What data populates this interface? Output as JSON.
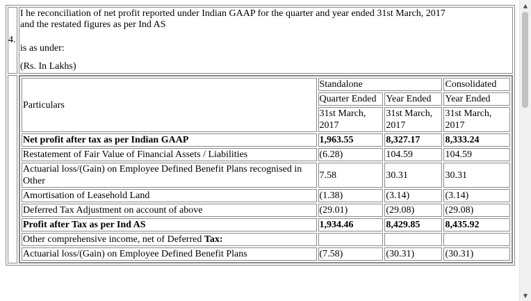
{
  "section": {
    "number": "4.",
    "intro_line1": "I he reconciliation of net profit reported under Indian GAAP for the quarter and year ended 31st March, 2017",
    "intro_line2": "and the restated figures as per Ind AS",
    "intro_line3": "is as under:",
    "unit_note": "(Rs. In Lakhs)"
  },
  "table": {
    "particulars_header": "Particulars",
    "standalone_header": "Standalone",
    "consolidated_header": "Consolidated",
    "quarter_ended": "Quarter Ended",
    "year_ended_1": "Year Ended",
    "year_ended_2": "Year Ended",
    "date_1": "31st March, 2017",
    "date_2": "31st March, 2017",
    "date_3": "31st March, 2017",
    "rows": [
      {
        "label": "Net profit after tax as per Indian GAAP",
        "q": "1,963.55",
        "y": "8,327.17",
        "c": "8,333.24"
      },
      {
        "label": "Restatement of Fair Value of Financial Assets / Liabilities",
        "q": "(6.28)",
        "y": "104.59",
        "c": "104.59"
      },
      {
        "label": "Actuarial loss/(Gain) on Employee Defined Benefit Plans recognised in Other",
        "q": "7.58",
        "y": "30.31",
        "c": "30.31"
      },
      {
        "label": "Amortisation of Leasehold Land",
        "q": "(1.38)",
        "y": "(3.14)",
        "c": "(3.14)"
      },
      {
        "label": "Deferred Tax Adjustment on account of above",
        "q": "(29.01)",
        "y": "(29.08)",
        "c": "(29.08)"
      },
      {
        "label": "Profit after Tax as per Ind AS",
        "q": "1,934.46",
        "y": "8,429.85",
        "c": "8,435.92"
      },
      {
        "label_prefix": "Other comprehensive income, net of Deferred ",
        "label_bold": "Tax:",
        "q": "",
        "y": "",
        "c": ""
      },
      {
        "label": "Actuarial loss/(Gain) on Employee Defined Benefit Plans",
        "q": "(7.58)",
        "y": "(30.31)",
        "c": "(30.31)"
      }
    ]
  },
  "scrollbar": {
    "up_glyph": "▲",
    "down_glyph": "▼"
  }
}
